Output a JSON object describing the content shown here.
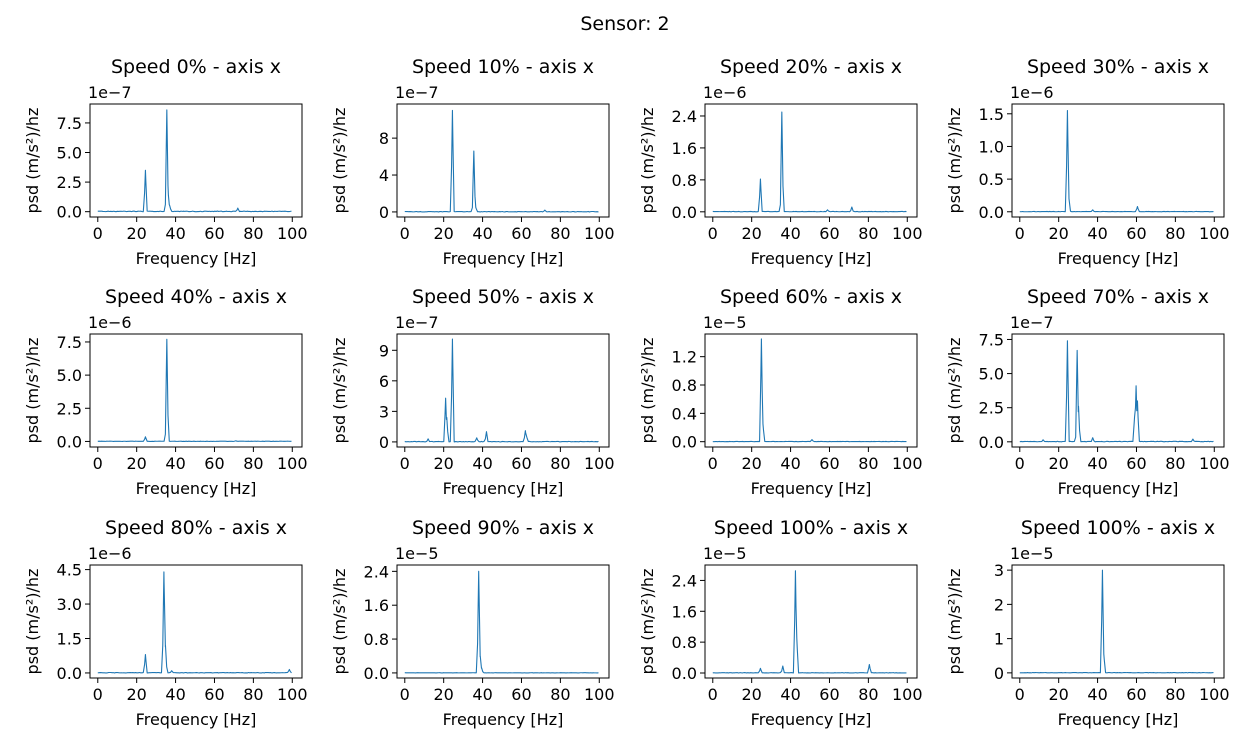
{
  "figure": {
    "suptitle": "Sensor: 2"
  },
  "chart_data": [
    {
      "type": "line",
      "title": "Speed 0% - axis x",
      "xlabel": "Frequency [Hz]",
      "ylabel": "psd (m/s²)/hz",
      "offset_text": "1e−7",
      "xlim": [
        -4,
        105
      ],
      "xticks": [
        0,
        20,
        40,
        60,
        80,
        100
      ],
      "ylim": [
        -0.45,
        9.1
      ],
      "yticks": [
        0,
        2.5,
        5.0,
        7.5
      ],
      "ytick_labels": [
        "0.0",
        "2.5",
        "5.0",
        "7.5"
      ],
      "scale": 1e-07,
      "baseline": 0.05,
      "peaks": [
        {
          "x": 24.5,
          "y": 3.5
        },
        {
          "x": 35.5,
          "y": 8.6
        },
        {
          "x": 36.3,
          "y": 1.4
        },
        {
          "x": 37.0,
          "y": 0.5
        },
        {
          "x": 72,
          "y": 0.3
        }
      ]
    },
    {
      "type": "line",
      "title": "Speed 10% - axis x",
      "xlabel": "Frequency [Hz]",
      "ylabel": "psd (m/s²)/hz",
      "offset_text": "1e−7",
      "xlim": [
        -4,
        105
      ],
      "xticks": [
        0,
        20,
        40,
        60,
        80,
        100
      ],
      "ylim": [
        -0.55,
        11.7
      ],
      "yticks": [
        0,
        4,
        8
      ],
      "ytick_labels": [
        "0",
        "4",
        "8"
      ],
      "scale": 1e-07,
      "baseline": 0.05,
      "peaks": [
        {
          "x": 24.5,
          "y": 11.0
        },
        {
          "x": 35.5,
          "y": 6.6
        },
        {
          "x": 36.5,
          "y": 0.5
        },
        {
          "x": 72,
          "y": 0.2
        }
      ]
    },
    {
      "type": "line",
      "title": "Speed 20% - axis x",
      "xlabel": "Frequency [Hz]",
      "ylabel": "psd (m/s²)/hz",
      "offset_text": "1e−6",
      "xlim": [
        -4,
        105
      ],
      "xticks": [
        0,
        20,
        40,
        60,
        80,
        100
      ],
      "ylim": [
        -0.13,
        2.7
      ],
      "yticks": [
        0,
        0.8,
        1.6,
        2.4
      ],
      "ytick_labels": [
        "0.0",
        "0.8",
        "1.6",
        "2.4"
      ],
      "scale": 1e-06,
      "baseline": 0.01,
      "peaks": [
        {
          "x": 24.5,
          "y": 0.82
        },
        {
          "x": 35.5,
          "y": 2.5
        },
        {
          "x": 59,
          "y": 0.05
        },
        {
          "x": 71.5,
          "y": 0.12
        }
      ]
    },
    {
      "type": "line",
      "title": "Speed 30% - axis x",
      "xlabel": "Frequency [Hz]",
      "ylabel": "psd (m/s²)/hz",
      "offset_text": "1e−6",
      "xlim": [
        -4,
        105
      ],
      "xticks": [
        0,
        20,
        40,
        60,
        80,
        100
      ],
      "ylim": [
        -0.08,
        1.65
      ],
      "yticks": [
        0,
        0.5,
        1.0,
        1.5
      ],
      "ytick_labels": [
        "0.0",
        "0.5",
        "1.0",
        "1.5"
      ],
      "scale": 1e-06,
      "baseline": 0.005,
      "peaks": [
        {
          "x": 24.5,
          "y": 1.55
        },
        {
          "x": 25.3,
          "y": 0.2
        },
        {
          "x": 37.5,
          "y": 0.03
        },
        {
          "x": 60.5,
          "y": 0.08
        }
      ]
    },
    {
      "type": "line",
      "title": "Speed 40% - axis x",
      "xlabel": "Frequency [Hz]",
      "ylabel": "psd (m/s²)/hz",
      "offset_text": "1e−6",
      "xlim": [
        -4,
        105
      ],
      "xticks": [
        0,
        20,
        40,
        60,
        80,
        100
      ],
      "ylim": [
        -0.42,
        8.1
      ],
      "yticks": [
        0,
        2.5,
        5.0,
        7.5
      ],
      "ytick_labels": [
        "0.0",
        "2.5",
        "5.0",
        "7.5"
      ],
      "scale": 1e-06,
      "baseline": 0.02,
      "peaks": [
        {
          "x": 24.5,
          "y": 0.35
        },
        {
          "x": 35.5,
          "y": 7.7
        },
        {
          "x": 71,
          "y": 0.05
        }
      ]
    },
    {
      "type": "line",
      "title": "Speed 50% - axis x",
      "xlabel": "Frequency [Hz]",
      "ylabel": "psd (m/s²)/hz",
      "offset_text": "1e−7",
      "xlim": [
        -4,
        105
      ],
      "xticks": [
        0,
        20,
        40,
        60,
        80,
        100
      ],
      "ylim": [
        -0.5,
        10.6
      ],
      "yticks": [
        0,
        3,
        6,
        9
      ],
      "ytick_labels": [
        "0",
        "3",
        "6",
        "9"
      ],
      "scale": 1e-07,
      "baseline": 0.05,
      "peaks": [
        {
          "x": 12,
          "y": 0.3
        },
        {
          "x": 21,
          "y": 4.3
        },
        {
          "x": 21.6,
          "y": 2.4
        },
        {
          "x": 24.5,
          "y": 10.1
        },
        {
          "x": 37,
          "y": 0.4
        },
        {
          "x": 42,
          "y": 1.0
        },
        {
          "x": 62,
          "y": 1.1
        },
        {
          "x": 62.7,
          "y": 0.5
        }
      ]
    },
    {
      "type": "line",
      "title": "Speed 60% - axis x",
      "xlabel": "Frequency [Hz]",
      "ylabel": "psd (m/s²)/hz",
      "offset_text": "1e−5",
      "xlim": [
        -4,
        105
      ],
      "xticks": [
        0,
        20,
        40,
        60,
        80,
        100
      ],
      "ylim": [
        -0.075,
        1.52
      ],
      "yticks": [
        0,
        0.4,
        0.8,
        1.2
      ],
      "ytick_labels": [
        "0.0",
        "0.4",
        "0.8",
        "1.2"
      ],
      "scale": 1e-05,
      "baseline": 0.004,
      "peaks": [
        {
          "x": 25.0,
          "y": 1.45
        },
        {
          "x": 25.8,
          "y": 0.25
        },
        {
          "x": 51,
          "y": 0.03
        }
      ]
    },
    {
      "type": "line",
      "title": "Speed 70% - axis x",
      "xlabel": "Frequency [Hz]",
      "ylabel": "psd (m/s²)/hz",
      "offset_text": "1e−7",
      "xlim": [
        -4,
        105
      ],
      "xticks": [
        0,
        20,
        40,
        60,
        80,
        100
      ],
      "ylim": [
        -0.38,
        7.9
      ],
      "yticks": [
        0,
        2.5,
        5.0,
        7.5
      ],
      "ytick_labels": [
        "0.0",
        "2.5",
        "5.0",
        "7.5"
      ],
      "scale": 1e-07,
      "baseline": 0.04,
      "peaks": [
        {
          "x": 12,
          "y": 0.15
        },
        {
          "x": 24.5,
          "y": 7.4
        },
        {
          "x": 29.5,
          "y": 6.7
        },
        {
          "x": 30.2,
          "y": 2.6
        },
        {
          "x": 37.5,
          "y": 0.3
        },
        {
          "x": 59,
          "y": 1.8
        },
        {
          "x": 59.8,
          "y": 4.1
        },
        {
          "x": 60.5,
          "y": 3.0
        },
        {
          "x": 89,
          "y": 0.2
        }
      ]
    },
    {
      "type": "line",
      "title": "Speed 80% - axis x",
      "xlabel": "Frequency [Hz]",
      "ylabel": "psd (m/s²)/hz",
      "offset_text": "1e−6",
      "xlim": [
        -4,
        105
      ],
      "xticks": [
        0,
        20,
        40,
        60,
        80,
        100
      ],
      "ylim": [
        -0.22,
        4.7
      ],
      "yticks": [
        0,
        1.5,
        3.0,
        4.5
      ],
      "ytick_labels": [
        "0.0",
        "1.5",
        "3.0",
        "4.5"
      ],
      "scale": 1e-06,
      "baseline": 0.02,
      "peaks": [
        {
          "x": 24.5,
          "y": 0.8
        },
        {
          "x": 34.0,
          "y": 4.4
        },
        {
          "x": 34.8,
          "y": 1.2
        },
        {
          "x": 38,
          "y": 0.1
        },
        {
          "x": 98.5,
          "y": 0.15
        }
      ]
    },
    {
      "type": "line",
      "title": "Speed 90% - axis x",
      "xlabel": "Frequency [Hz]",
      "ylabel": "psd (m/s²)/hz",
      "offset_text": "1e−5",
      "xlim": [
        -4,
        105
      ],
      "xticks": [
        0,
        20,
        40,
        60,
        80,
        100
      ],
      "ylim": [
        -0.12,
        2.55
      ],
      "yticks": [
        0,
        0.8,
        1.6,
        2.4
      ],
      "ytick_labels": [
        "0.0",
        "0.8",
        "1.6",
        "2.4"
      ],
      "scale": 1e-05,
      "baseline": 0.005,
      "peaks": [
        {
          "x": 38.0,
          "y": 2.4
        },
        {
          "x": 38.8,
          "y": 0.4
        },
        {
          "x": 39.5,
          "y": 0.12
        }
      ]
    },
    {
      "type": "line",
      "title": "Speed 100% - axis x",
      "xlabel": "Frequency [Hz]",
      "ylabel": "psd (m/s²)/hz",
      "offset_text": "1e−5",
      "xlim": [
        -4,
        105
      ],
      "xticks": [
        0,
        20,
        40,
        60,
        80,
        100
      ],
      "ylim": [
        -0.13,
        2.8
      ],
      "yticks": [
        0,
        0.8,
        1.6,
        2.4
      ],
      "ytick_labels": [
        "0.0",
        "0.8",
        "1.6",
        "2.4"
      ],
      "scale": 1e-05,
      "baseline": 0.01,
      "peaks": [
        {
          "x": 24.5,
          "y": 0.12
        },
        {
          "x": 36,
          "y": 0.18
        },
        {
          "x": 42.5,
          "y": 2.65
        },
        {
          "x": 43.2,
          "y": 0.9
        },
        {
          "x": 80.5,
          "y": 0.22
        }
      ]
    },
    {
      "type": "line",
      "title": "Speed 100% - axis x",
      "xlabel": "Frequency [Hz]",
      "ylabel": "psd (m/s²)/hz",
      "offset_text": "1e−5",
      "xlim": [
        -4,
        105
      ],
      "xticks": [
        0,
        20,
        40,
        60,
        80,
        100
      ],
      "ylim": [
        -0.15,
        3.15
      ],
      "yticks": [
        0,
        1,
        2,
        3
      ],
      "ytick_labels": [
        "0",
        "1",
        "2",
        "3"
      ],
      "scale": 1e-05,
      "baseline": 0.01,
      "peaks": [
        {
          "x": 42.5,
          "y": 3.0
        },
        {
          "x": 43.2,
          "y": 0.55
        }
      ]
    }
  ]
}
